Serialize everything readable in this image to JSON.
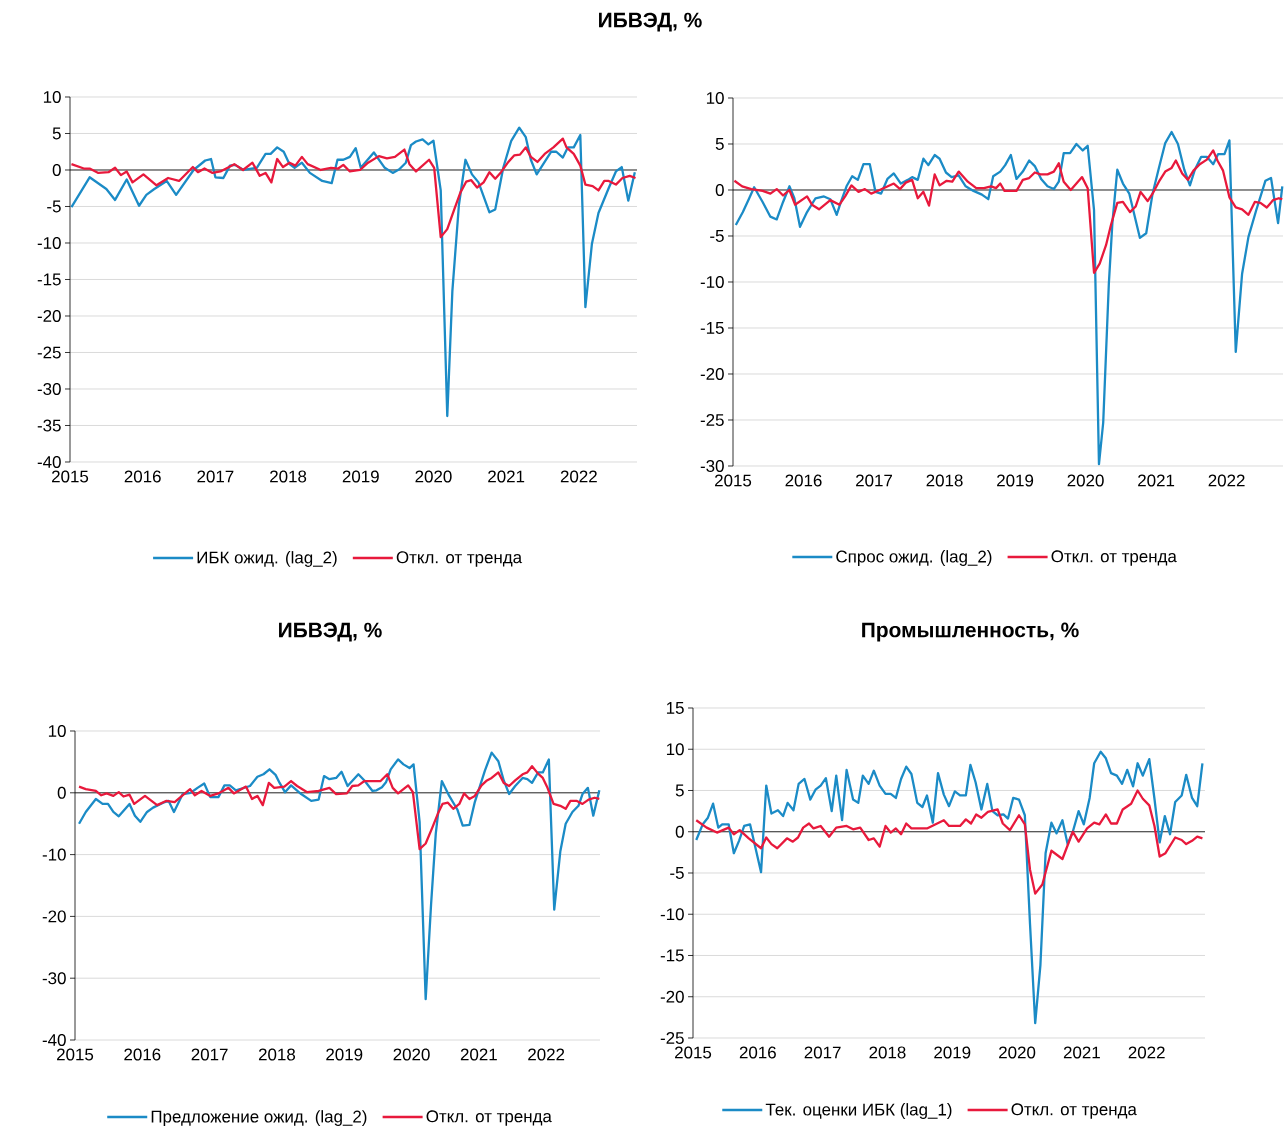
{
  "chart_data": [
    {
      "type": "line",
      "title": "ИБВЭД, %",
      "xlim": [
        2015,
        2022.8
      ],
      "xticks": [
        2015,
        2016,
        2017,
        2018,
        2019,
        2020,
        2021,
        2022
      ],
      "ylim": [
        -40,
        10
      ],
      "yticks": [
        -40,
        -35,
        -30,
        -25,
        -20,
        -15,
        -10,
        -5,
        0,
        5,
        10
      ],
      "grid": "y",
      "legend": "bottom",
      "series": [
        {
          "name": "ИБК ожид. (lag_2)",
          "color": "#1b8bc6",
          "x": [
            2015.02,
            2015.27,
            2015.5,
            2015.62,
            2015.78,
            2015.95,
            2016.05,
            2016.16,
            2016.33,
            2016.46,
            2016.7,
            2016.86,
            2016.94,
            2017.0,
            2017.11,
            2017.2,
            2017.27,
            2017.39,
            2017.57,
            2017.69,
            2017.76,
            2017.85,
            2017.94,
            2018.02,
            2018.09,
            2018.19,
            2018.3,
            2018.47,
            2018.6,
            2018.68,
            2018.76,
            2018.85,
            2018.93,
            2019.0,
            2019.18,
            2019.33,
            2019.44,
            2019.53,
            2019.62,
            2019.69,
            2019.76,
            2019.85,
            2019.93,
            2020.0,
            2020.1,
            2020.19,
            2020.26,
            2020.35,
            2020.44,
            2020.53,
            2020.62,
            2020.77,
            2020.85,
            2020.96,
            2021.07,
            2021.18,
            2021.27,
            2021.34,
            2021.42,
            2021.51,
            2021.62,
            2021.69,
            2021.78,
            2021.85,
            2021.93,
            2022.02,
            2022.09,
            2022.18,
            2022.27,
            2022.41,
            2022.51,
            2022.59,
            2022.68,
            2022.77
          ],
          "values": [
            -5.1,
            -1.0,
            -2.6,
            -4.1,
            -1.3,
            -4.9,
            -3.4,
            -2.6,
            -1.5,
            -3.4,
            0,
            1.3,
            1.5,
            -1.0,
            -1.1,
            0.6,
            0.7,
            0,
            0.3,
            2.2,
            2.2,
            3.1,
            2.5,
            0.8,
            0.3,
            1.0,
            -0.4,
            -1.5,
            -1.8,
            1.4,
            1.4,
            1.8,
            3.0,
            0.3,
            2.4,
            0.3,
            -0.4,
            0.1,
            1.0,
            3.4,
            3.9,
            4.2,
            3.5,
            4.0,
            -2.8,
            -33.7,
            -16.6,
            -4.8,
            1.4,
            -0.6,
            -1.7,
            -5.8,
            -5.4,
            0.3,
            4.0,
            5.8,
            4.5,
            1.4,
            -0.6,
            0.8,
            2.5,
            2.5,
            1.7,
            3.1,
            3.1,
            4.8,
            -18.8,
            -10.1,
            -5.9,
            -2.5,
            -0.2,
            0.4,
            -4.2,
            -0.3
          ]
        },
        {
          "name": "Откл. от тренда",
          "color": "#e8193c",
          "x": [
            2015.02,
            2015.19,
            2015.27,
            2015.39,
            2015.53,
            2015.62,
            2015.7,
            2015.78,
            2015.86,
            2016.01,
            2016.19,
            2016.35,
            2016.5,
            2016.69,
            2016.76,
            2016.85,
            2016.96,
            2017.07,
            2017.26,
            2017.38,
            2017.51,
            2017.61,
            2017.69,
            2017.77,
            2017.85,
            2017.93,
            2018.02,
            2018.1,
            2018.19,
            2018.27,
            2018.45,
            2018.59,
            2018.69,
            2018.76,
            2018.85,
            2018.99,
            2019.1,
            2019.25,
            2019.36,
            2019.47,
            2019.6,
            2019.67,
            2019.76,
            2019.94,
            2020.01,
            2020.1,
            2020.19,
            2020.29,
            2020.37,
            2020.45,
            2020.52,
            2020.6,
            2020.69,
            2020.77,
            2020.85,
            2020.93,
            2021.03,
            2021.11,
            2021.19,
            2021.27,
            2021.34,
            2021.43,
            2021.53,
            2021.65,
            2021.78,
            2021.83,
            2021.93,
            2022.02,
            2022.09,
            2022.19,
            2022.27,
            2022.35,
            2022.41,
            2022.51,
            2022.6,
            2022.7,
            2022.78
          ],
          "values": [
            0.8,
            0.2,
            0.2,
            -0.4,
            -0.3,
            0.3,
            -0.7,
            -0.2,
            -1.7,
            -0.6,
            -2.1,
            -1.1,
            -1.5,
            0.4,
            -0.3,
            0.2,
            -0.4,
            -0.2,
            0.8,
            0,
            1.0,
            -0.8,
            -0.4,
            -1.7,
            1.5,
            0.4,
            1.0,
            0.6,
            1.8,
            0.8,
            0,
            0.3,
            0.2,
            0.7,
            -0.2,
            0,
            1.0,
            1.9,
            1.6,
            1.8,
            2.8,
            0.8,
            -0.2,
            1.4,
            0.3,
            -9.2,
            -8.1,
            -5.3,
            -3.1,
            -1.6,
            -1.4,
            -2.4,
            -1.7,
            -0.3,
            -1.2,
            -0.3,
            1.1,
            2.0,
            2.1,
            3.1,
            1.8,
            1.1,
            2.2,
            3.1,
            4.3,
            3.1,
            2.2,
            0.6,
            -2.0,
            -2.2,
            -2.8,
            -1.5,
            -1.5,
            -2.0,
            -1.1,
            -0.8,
            -1.1
          ]
        }
      ]
    },
    {
      "type": "line",
      "xlim": [
        2015,
        2022.8
      ],
      "xticks": [
        2015,
        2016,
        2017,
        2018,
        2019,
        2020,
        2021,
        2022
      ],
      "ylim": [
        -30,
        10
      ],
      "yticks": [
        -30,
        -25,
        -20,
        -15,
        -10,
        -5,
        0,
        5,
        10
      ],
      "grid": "y",
      "legend": "bottom",
      "series": [
        {
          "name": "Спрос ожид. (lag_2)",
          "color": "#1b8bc6",
          "x": [
            2015.04,
            2015.14,
            2015.23,
            2015.3,
            2015.42,
            2015.53,
            2015.62,
            2015.71,
            2015.8,
            2015.87,
            2015.95,
            2016.05,
            2016.17,
            2016.29,
            2016.38,
            2016.47,
            2016.53,
            2016.61,
            2016.69,
            2016.77,
            2016.85,
            2016.94,
            2017.02,
            2017.1,
            2017.19,
            2017.28,
            2017.38,
            2017.48,
            2017.54,
            2017.62,
            2017.7,
            2017.77,
            2017.86,
            2017.93,
            2018.02,
            2018.1,
            2018.2,
            2018.3,
            2018.41,
            2018.53,
            2018.62,
            2018.69,
            2018.79,
            2018.86,
            2018.94,
            2019.02,
            2019.11,
            2019.2,
            2019.28,
            2019.37,
            2019.46,
            2019.55,
            2019.62,
            2019.69,
            2019.78,
            2019.87,
            2019.96,
            2020.03,
            2020.12,
            2020.19,
            2020.25,
            2020.33,
            2020.38,
            2020.45,
            2020.53,
            2020.62,
            2020.77,
            2020.86,
            2020.95,
            2021.04,
            2021.13,
            2021.22,
            2021.31,
            2021.4,
            2021.48,
            2021.55,
            2021.64,
            2021.72,
            2021.81,
            2021.88,
            2021.97,
            2022.04,
            2022.13,
            2022.22,
            2022.31,
            2022.42,
            2022.55,
            2022.63,
            2022.73,
            2022.79
          ],
          "values": [
            -3.8,
            -2.4,
            -0.9,
            0.3,
            -1.3,
            -2.9,
            -3.2,
            -1.3,
            0.4,
            -0.9,
            -4.0,
            -2.4,
            -0.9,
            -0.7,
            -1.0,
            -2.7,
            -1.3,
            0.4,
            1.5,
            1.1,
            2.8,
            2.8,
            -0.2,
            -0.4,
            1.2,
            1.8,
            0.7,
            1.1,
            1.4,
            1.1,
            3.4,
            2.7,
            3.8,
            3.4,
            1.9,
            1.4,
            1.6,
            0.4,
            -0.1,
            -0.5,
            -1.0,
            1.5,
            2.0,
            2.7,
            3.8,
            1.2,
            2.0,
            3.2,
            2.6,
            1.2,
            0.4,
            0.1,
            0.9,
            4.0,
            4.0,
            5.0,
            4.3,
            4.8,
            -2.2,
            -29.8,
            -25.3,
            -10.2,
            -3.6,
            2.2,
            0.7,
            -0.4,
            -5.2,
            -4.7,
            -0.4,
            2.4,
            5.1,
            6.3,
            5.0,
            2.2,
            0.5,
            2.2,
            3.6,
            3.6,
            2.8,
            3.9,
            3.9,
            5.4,
            -17.6,
            -9.1,
            -5.1,
            -2.2,
            1.0,
            1.3,
            -3.6,
            0.4
          ]
        },
        {
          "name": "Откл. от тренда",
          "color": "#e8193c",
          "x": [
            2015.02,
            2015.13,
            2015.26,
            2015.42,
            2015.53,
            2015.62,
            2015.71,
            2015.8,
            2015.88,
            2016.05,
            2016.12,
            2016.22,
            2016.38,
            2016.51,
            2016.59,
            2016.68,
            2016.78,
            2016.87,
            2016.96,
            2017.08,
            2017.28,
            2017.37,
            2017.45,
            2017.54,
            2017.62,
            2017.7,
            2017.78,
            2017.86,
            2017.93,
            2018.03,
            2018.11,
            2018.2,
            2018.33,
            2018.45,
            2018.56,
            2018.66,
            2018.73,
            2018.79,
            2018.85,
            2019.02,
            2019.11,
            2019.2,
            2019.28,
            2019.36,
            2019.46,
            2019.55,
            2019.62,
            2019.69,
            2019.79,
            2019.95,
            2020.03,
            2020.12,
            2020.2,
            2020.29,
            2020.36,
            2020.45,
            2020.53,
            2020.63,
            2020.71,
            2020.78,
            2020.88,
            2020.95,
            2021.04,
            2021.13,
            2021.22,
            2021.28,
            2021.37,
            2021.45,
            2021.53,
            2021.62,
            2021.72,
            2021.81,
            2021.87,
            2021.95,
            2022.04,
            2022.13,
            2022.22,
            2022.31,
            2022.4,
            2022.48,
            2022.57,
            2022.66,
            2022.74,
            2022.79
          ],
          "values": [
            1.0,
            0.4,
            0.1,
            -0.1,
            -0.4,
            0.1,
            -0.6,
            0,
            -1.6,
            -0.7,
            -1.6,
            -2.1,
            -1.1,
            -1.6,
            -0.7,
            0.5,
            -0.2,
            0.1,
            -0.4,
            0,
            0.7,
            0.1,
            0.8,
            1.1,
            -0.9,
            -0.2,
            -1.7,
            1.7,
            0.5,
            1.0,
            0.9,
            2.0,
            0.9,
            0.2,
            0.2,
            0.4,
            0.2,
            0.7,
            -0.1,
            -0.1,
            1.1,
            1.3,
            1.9,
            1.7,
            1.7,
            2.0,
            2.9,
            0.9,
            0,
            1.4,
            0.2,
            -9.0,
            -8.0,
            -6.0,
            -3.8,
            -1.4,
            -1.3,
            -2.4,
            -1.8,
            -0.2,
            -1.2,
            -0.4,
            0.9,
            2.0,
            2.4,
            3.2,
            1.8,
            1.1,
            2.1,
            2.8,
            3.3,
            4.3,
            3.2,
            2.1,
            -0.8,
            -1.9,
            -2.1,
            -2.7,
            -1.3,
            -1.4,
            -1.9,
            -1.1,
            -0.9,
            -1.0
          ]
        }
      ]
    },
    {
      "type": "line",
      "title": "ИБВЭД, %",
      "xlim": [
        2015,
        2022.8
      ],
      "xticks": [
        2015,
        2016,
        2017,
        2018,
        2019,
        2020,
        2021,
        2022
      ],
      "ylim": [
        -40,
        10
      ],
      "yticks": [
        -40,
        -30,
        -20,
        -10,
        0,
        10
      ],
      "grid": "y",
      "legend": "bottom",
      "series": [
        {
          "name": "Предложение ожид. (lag_2)",
          "color": "#1b8bc6",
          "x": [
            2015.06,
            2015.16,
            2015.31,
            2015.41,
            2015.49,
            2015.57,
            2015.65,
            2015.81,
            2015.89,
            2015.97,
            2016.07,
            2016.16,
            2016.31,
            2016.39,
            2016.47,
            2016.6,
            2016.72,
            2016.82,
            2016.92,
            2017.01,
            2017.13,
            2017.22,
            2017.3,
            2017.39,
            2017.6,
            2017.71,
            2017.8,
            2017.89,
            2017.98,
            2018.04,
            2018.12,
            2018.21,
            2018.36,
            2018.51,
            2018.62,
            2018.7,
            2018.78,
            2018.88,
            2018.96,
            2019.05,
            2019.21,
            2019.3,
            2019.42,
            2019.48,
            2019.56,
            2019.62,
            2019.69,
            2019.8,
            2019.88,
            2019.97,
            2020.03,
            2020.12,
            2020.21,
            2020.29,
            2020.36,
            2020.45,
            2020.56,
            2020.68,
            2020.76,
            2020.86,
            2020.94,
            2021.09,
            2021.19,
            2021.29,
            2021.37,
            2021.45,
            2021.54,
            2021.65,
            2021.72,
            2021.79,
            2021.88,
            2021.95,
            2022.04,
            2022.12,
            2022.21,
            2022.29,
            2022.39,
            2022.48,
            2022.54,
            2022.62,
            2022.7,
            2022.79
          ],
          "values": [
            -5.0,
            -3.1,
            -1.0,
            -1.8,
            -1.8,
            -3.1,
            -3.8,
            -1.8,
            -3.7,
            -4.7,
            -3.1,
            -2.4,
            -1.6,
            -1.3,
            -3.1,
            -0.2,
            0,
            0.8,
            1.5,
            -0.7,
            -0.7,
            1.2,
            1.2,
            0.4,
            1.1,
            2.6,
            3.0,
            3.8,
            2.9,
            1.6,
            0.1,
            1.2,
            -0.2,
            -1.3,
            -1.1,
            2.7,
            2.2,
            2.4,
            3.4,
            1.1,
            3.0,
            2.0,
            0.3,
            0.4,
            0.9,
            1.7,
            3.8,
            5.4,
            4.6,
            4.0,
            4.6,
            -4.7,
            -33.4,
            -18.1,
            -6.6,
            1.9,
            -0.5,
            -2.7,
            -5.3,
            -5.2,
            -1.5,
            3.6,
            6.5,
            5.1,
            2.0,
            -0.2,
            1.1,
            2.4,
            2.2,
            1.6,
            3.3,
            3.3,
            5.4,
            -18.9,
            -9.5,
            -5.0,
            -3.1,
            -2.1,
            -0.2,
            0.8,
            -3.7,
            0.4
          ]
        },
        {
          "name": "Откл. от тренда",
          "color": "#e8193c",
          "x": [
            2015.06,
            2015.16,
            2015.31,
            2015.39,
            2015.47,
            2015.57,
            2015.65,
            2015.72,
            2015.81,
            2015.88,
            2016.04,
            2016.22,
            2016.36,
            2016.48,
            2016.62,
            2016.71,
            2016.78,
            2016.88,
            2017.01,
            2017.13,
            2017.28,
            2017.36,
            2017.54,
            2017.63,
            2017.71,
            2017.79,
            2017.88,
            2017.96,
            2018.11,
            2018.21,
            2018.3,
            2018.45,
            2018.62,
            2018.78,
            2018.88,
            2019.04,
            2019.12,
            2019.21,
            2019.3,
            2019.54,
            2019.64,
            2019.72,
            2019.8,
            2019.95,
            2020.02,
            2020.12,
            2020.21,
            2020.31,
            2020.39,
            2020.46,
            2020.54,
            2020.62,
            2020.71,
            2020.78,
            2020.86,
            2020.94,
            2021.04,
            2021.12,
            2021.19,
            2021.29,
            2021.37,
            2021.45,
            2021.54,
            2021.65,
            2021.72,
            2021.79,
            2021.88,
            2021.95,
            2022.02,
            2022.11,
            2022.21,
            2022.29,
            2022.36,
            2022.45,
            2022.54,
            2022.63,
            2022.72,
            2022.79
          ],
          "values": [
            1.0,
            0.6,
            0.3,
            -0.4,
            -0.1,
            -0.5,
            0.1,
            -0.6,
            -0.3,
            -1.8,
            -0.5,
            -2.0,
            -1.3,
            -1.5,
            -0.2,
            0.6,
            -0.4,
            0.3,
            -0.5,
            -0.1,
            0.8,
            -0.1,
            1.0,
            -1.0,
            -0.5,
            -2.0,
            1.6,
            0.8,
            1.0,
            1.9,
            1.1,
            0.1,
            0.3,
            0.8,
            -0.2,
            -0.1,
            1.1,
            1.2,
            1.9,
            1.9,
            3.0,
            0.8,
            -0.1,
            1.2,
            0.1,
            -9.1,
            -8.2,
            -5.6,
            -3.4,
            -1.8,
            -1.6,
            -2.6,
            -1.8,
            -0.1,
            -1.0,
            -0.5,
            1.2,
            2.0,
            2.4,
            3.3,
            1.6,
            1.1,
            2.0,
            3.0,
            3.3,
            4.3,
            3.1,
            2.4,
            0.8,
            -1.8,
            -2.1,
            -2.6,
            -1.3,
            -1.3,
            -1.8,
            -1.1,
            -0.8,
            -1.0
          ]
        }
      ]
    },
    {
      "type": "line",
      "title": "Промышленность, %",
      "xlim": [
        2015,
        2022.9
      ],
      "xticks": [
        2015,
        2016,
        2017,
        2018,
        2019,
        2020,
        2021,
        2022
      ],
      "ylim": [
        -25,
        15
      ],
      "yticks": [
        -25,
        -20,
        -15,
        -10,
        -5,
        0,
        5,
        10,
        15
      ],
      "grid": "y",
      "legend": "bottom",
      "series": [
        {
          "name": "Тек. оценки ИБК (lag_1)",
          "color": "#1b8bc6",
          "x": [
            2015.05,
            2015.15,
            2015.23,
            2015.31,
            2015.39,
            2015.45,
            2015.55,
            2015.63,
            2015.71,
            2015.79,
            2015.88,
            2016.05,
            2016.13,
            2016.21,
            2016.31,
            2016.39,
            2016.46,
            2016.55,
            2016.63,
            2016.72,
            2016.81,
            2016.89,
            2016.97,
            2017.05,
            2017.14,
            2017.21,
            2017.3,
            2017.37,
            2017.47,
            2017.55,
            2017.62,
            2017.71,
            2017.79,
            2017.88,
            2017.97,
            2018.05,
            2018.13,
            2018.21,
            2018.29,
            2018.37,
            2018.46,
            2018.54,
            2018.61,
            2018.7,
            2018.78,
            2018.87,
            2018.95,
            2019.04,
            2019.12,
            2019.21,
            2019.28,
            2019.36,
            2019.45,
            2019.54,
            2019.62,
            2019.7,
            2019.79,
            2019.86,
            2019.94,
            2020.03,
            2020.12,
            2020.2,
            2020.28,
            2020.36,
            2020.44,
            2020.53,
            2020.61,
            2020.7,
            2020.78,
            2020.86,
            2020.95,
            2021.03,
            2021.12,
            2021.19,
            2021.29,
            2021.37,
            2021.45,
            2021.54,
            2021.62,
            2021.7,
            2021.79,
            2021.86,
            2021.94,
            2022.04,
            2022.12,
            2022.2,
            2022.28,
            2022.36,
            2022.44,
            2022.54,
            2022.61,
            2022.7,
            2022.78,
            2022.86
          ],
          "values": [
            -1.0,
            0.9,
            1.7,
            3.4,
            0.5,
            0.9,
            0.9,
            -2.6,
            -1.1,
            0.7,
            0.9,
            -4.9,
            5.6,
            2.2,
            2.6,
            1.9,
            3.5,
            2.6,
            5.8,
            6.4,
            3.9,
            5.1,
            5.6,
            6.5,
            2.5,
            6.8,
            1.4,
            7.5,
            3.9,
            3.5,
            6.8,
            5.8,
            7.4,
            5.6,
            4.6,
            4.6,
            4.1,
            6.4,
            7.9,
            7.0,
            3.5,
            3.0,
            4.4,
            1.1,
            7.1,
            4.5,
            3.1,
            4.9,
            4.4,
            4.4,
            8.1,
            6.0,
            2.7,
            5.8,
            2.5,
            2.0,
            2.1,
            1.6,
            4.1,
            3.9,
            2.0,
            -11.2,
            -23.2,
            -16.2,
            -2.6,
            1.1,
            -0.2,
            1.4,
            -1.5,
            0,
            2.5,
            0.9,
            4.1,
            8.3,
            9.7,
            8.9,
            7.1,
            6.8,
            5.8,
            7.5,
            5.5,
            8.3,
            6.8,
            8.8,
            4.0,
            -1.3,
            1.9,
            -0.3,
            3.6,
            4.4,
            6.9,
            4.1,
            3.1,
            8.3
          ]
        },
        {
          "name": "Откл. от тренда",
          "color": "#e8193c",
          "x": [
            2015.05,
            2015.21,
            2015.37,
            2015.55,
            2015.63,
            2015.72,
            2015.86,
            2016.05,
            2016.13,
            2016.21,
            2016.3,
            2016.45,
            2016.54,
            2016.62,
            2016.7,
            2016.79,
            2016.86,
            2016.97,
            2017.1,
            2017.21,
            2017.37,
            2017.47,
            2017.58,
            2017.71,
            2017.79,
            2017.88,
            2017.97,
            2018.05,
            2018.13,
            2018.21,
            2018.29,
            2018.37,
            2018.61,
            2018.87,
            2018.95,
            2019.12,
            2019.21,
            2019.29,
            2019.37,
            2019.45,
            2019.55,
            2019.7,
            2019.78,
            2019.89,
            2020.03,
            2020.12,
            2020.2,
            2020.28,
            2020.39,
            2020.53,
            2020.7,
            2020.86,
            2020.95,
            2021.08,
            2021.19,
            2021.27,
            2021.37,
            2021.45,
            2021.54,
            2021.63,
            2021.76,
            2021.86,
            2021.94,
            2022.04,
            2022.12,
            2022.2,
            2022.29,
            2022.44,
            2022.54,
            2022.61,
            2022.7,
            2022.78,
            2022.86
          ],
          "values": [
            1.4,
            0.5,
            -0.1,
            0.5,
            -0.3,
            0.2,
            -0.8,
            -2.0,
            -0.7,
            -1.5,
            -2.0,
            -0.8,
            -1.2,
            -0.7,
            0.5,
            1.0,
            0.4,
            0.7,
            -0.6,
            0.5,
            0.7,
            0.3,
            0.5,
            -1.0,
            -0.8,
            -1.8,
            0.7,
            -0.1,
            0.4,
            -0.3,
            1.0,
            0.4,
            0.4,
            1.4,
            0.7,
            0.7,
            1.5,
            1.0,
            2.1,
            1.7,
            2.4,
            2.7,
            1.0,
            0.2,
            2.0,
            0.9,
            -4.6,
            -7.5,
            -6.4,
            -2.3,
            -3.3,
            0,
            -1.2,
            0.4,
            1.1,
            0.9,
            2.1,
            1.0,
            1.0,
            2.7,
            3.4,
            5.0,
            4.0,
            3.2,
            0.7,
            -3.0,
            -2.6,
            -0.7,
            -1.0,
            -1.5,
            -1.1,
            -0.6,
            -0.8
          ]
        }
      ]
    }
  ]
}
